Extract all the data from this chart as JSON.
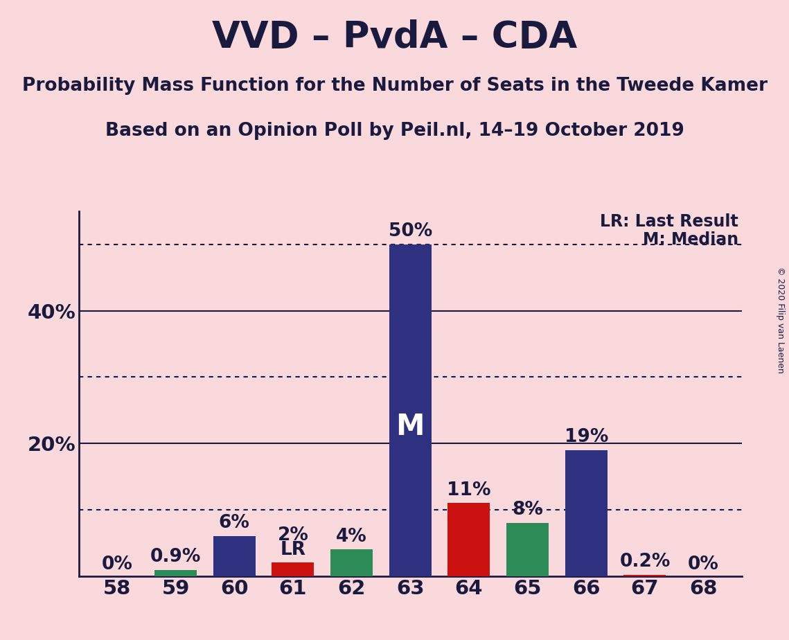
{
  "title": "VVD – PvdA – CDA",
  "subtitle1": "Probability Mass Function for the Number of Seats in the Tweede Kamer",
  "subtitle2": "Based on an Opinion Poll by Peil.nl, 14–19 October 2019",
  "copyright": "© 2020 Filip van Laenen",
  "legend_lr": "LR: Last Result",
  "legend_m": "M: Median",
  "background_color": "#FAD9DC",
  "axis_color": "#1a1a3e",
  "text_color": "#1a1a3e",
  "categories": [
    58,
    59,
    60,
    61,
    62,
    63,
    64,
    65,
    66,
    67,
    68
  ],
  "values": [
    0.0,
    0.9,
    6.0,
    2.0,
    4.0,
    50.0,
    11.0,
    8.0,
    19.0,
    0.2,
    0.0
  ],
  "bar_colors": [
    "#2e3080",
    "#2d8b57",
    "#2e3080",
    "#cc1111",
    "#2d8b57",
    "#2e3080",
    "#cc1111",
    "#2d8b57",
    "#2e3080",
    "#cc1111",
    "#2e3080"
  ],
  "labels": [
    "0%",
    "0.9%",
    "6%",
    "LR",
    "4%",
    "50%",
    "11%",
    "8%",
    "19%",
    "0.2%",
    "0%"
  ],
  "sub_labels": [
    null,
    null,
    null,
    "2%",
    null,
    null,
    null,
    null,
    null,
    null,
    null
  ],
  "median_bar": 63,
  "lr_bar": 61,
  "ylim": [
    0,
    55
  ],
  "yticks": [
    0,
    10,
    20,
    30,
    40,
    50
  ],
  "ytick_labels": [
    "",
    "",
    "20%",
    "",
    "40%",
    ""
  ],
  "dotted_lines": [
    10,
    30,
    50
  ],
  "solid_lines": [
    20,
    40
  ],
  "title_fontsize": 38,
  "subtitle_fontsize": 19,
  "label_fontsize": 19,
  "tick_fontsize": 21,
  "legend_fontsize": 17
}
